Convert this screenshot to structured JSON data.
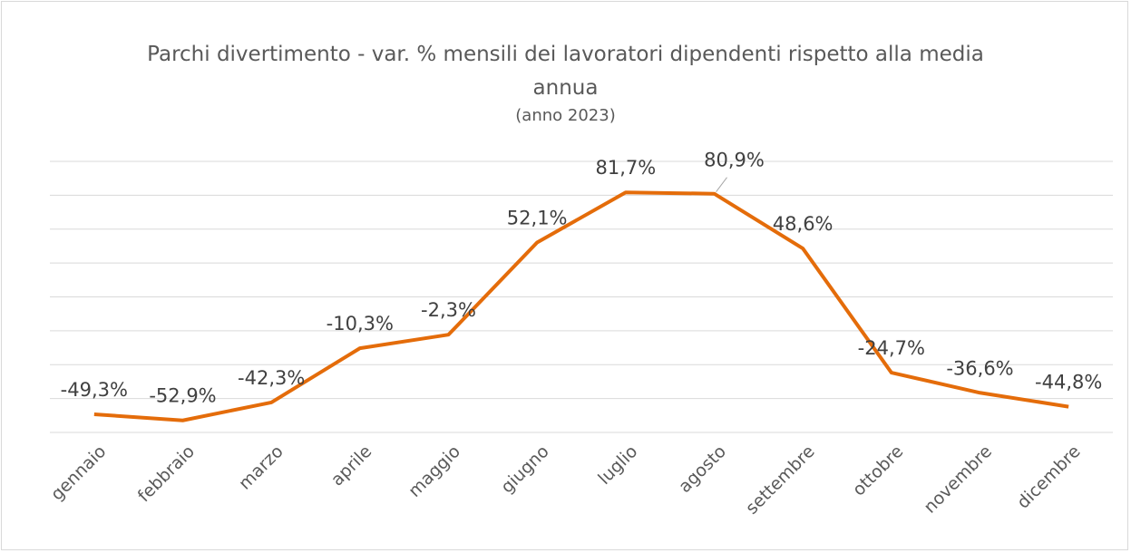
{
  "chart_data": {
    "type": "line",
    "title": "Parchi divertimento - var. % mensili dei lavoratori dipendenti rispetto alla media annua",
    "subtitle": "(anno 2023)",
    "categories": [
      "gennaio",
      "febbraio",
      "marzo",
      "aprile",
      "maggio",
      "giugno",
      "luglio",
      "agosto",
      "settembre",
      "ottobre",
      "novembre",
      "dicembre"
    ],
    "series": [
      {
        "name": "var. %",
        "color": "#e46c0a",
        "values": [
          -49.3,
          -52.9,
          -42.3,
          -10.3,
          -2.3,
          52.1,
          81.7,
          80.9,
          48.6,
          -24.7,
          -36.6,
          -44.8
        ],
        "value_labels": [
          "-49,3%",
          "-52,9%",
          "-42,3%",
          "-10,3%",
          "-2,3%",
          "52,1%",
          "81,7%",
          "80,9%",
          "48,6%",
          "-24,7%",
          "-36,6%",
          "-44,8%"
        ]
      }
    ],
    "ylim": [
      -60,
      100
    ],
    "yticks": [
      -60,
      -40,
      -20,
      0,
      20,
      40,
      60,
      80,
      100
    ],
    "grid": true
  }
}
